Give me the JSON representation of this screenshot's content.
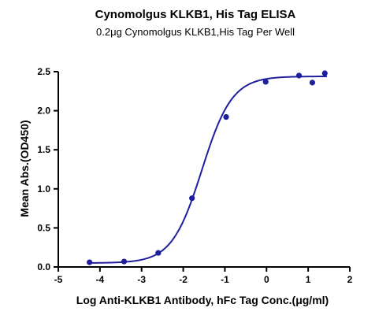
{
  "chart_data": {
    "type": "scatter",
    "title": "Cynomolgus KLKB1, His Tag ELISA",
    "subtitle": "0.2μg Cynomolgus KLKB1,His Tag Per Well",
    "xlabel": "Log Anti-KLKB1 Antibody, hFc Tag Conc.(μg/ml)",
    "ylabel": "Mean Abs.(OD450)",
    "xlim": [
      -5,
      2
    ],
    "ylim": [
      0,
      2.5
    ],
    "xticks": [
      "-5",
      "-4",
      "-3",
      "-2",
      "-1",
      "0",
      "1",
      "2"
    ],
    "yticks": [
      "0.0",
      "0.5",
      "1.0",
      "1.5",
      "2.0",
      "2.5"
    ],
    "grid": false,
    "series": [
      {
        "x": [
          -4.25,
          -3.42,
          -2.6,
          -1.79,
          -0.97,
          -0.02,
          0.78,
          1.1,
          1.4
        ],
        "y": [
          0.06,
          0.07,
          0.18,
          0.88,
          1.92,
          2.37,
          2.45,
          2.36,
          2.48
        ],
        "fit": {
          "model": "4PL",
          "bottom": 0.05,
          "top": 2.44,
          "logEC50": -1.55,
          "hill": 1.2,
          "x_range": [
            -4.3,
            1.45
          ]
        }
      }
    ],
    "colors": {
      "series": "#1f1f9e",
      "axis": "#000000"
    }
  }
}
